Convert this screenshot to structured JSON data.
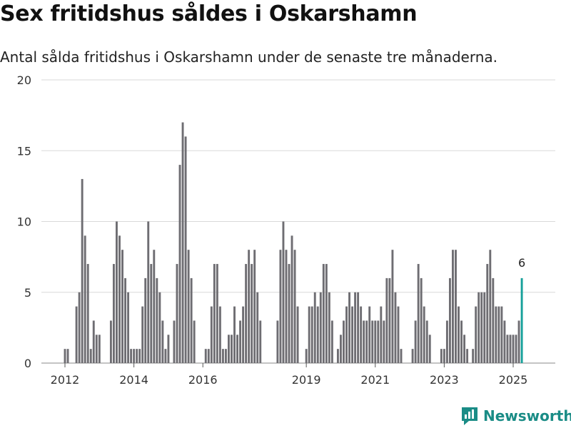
{
  "title": "Sex fritidshus såldes i Oskarshamn",
  "subtitle": "Antal sålda fritidshus i Oskarshamn under de senaste tre månaderna.",
  "brand": {
    "name": "Newsworthy",
    "icon": "newsworthy-logo-icon"
  },
  "colors": {
    "bar": "#6e6d72",
    "highlight": "#16a09a",
    "grid": "#d9d9d9",
    "brand": "#1a8c86"
  },
  "chart_data": {
    "type": "bar",
    "xlabel": "",
    "ylabel": "",
    "ylim": [
      0,
      20
    ],
    "yticks": [
      0,
      5,
      10,
      15,
      20
    ],
    "grid": true,
    "xticks": [
      {
        "label": "2012",
        "x": 2012.0
      },
      {
        "label": "2014",
        "x": 2014.0
      },
      {
        "label": "2016",
        "x": 2016.0
      },
      {
        "label": "2019",
        "x": 2019.0
      },
      {
        "label": "2021",
        "x": 2021.0
      },
      {
        "label": "2023",
        "x": 2023.0
      },
      {
        "label": "2025",
        "x": 2025.0
      }
    ],
    "x_start": 2012.0,
    "x_step_months": 1,
    "values": [
      1,
      1,
      0,
      0,
      4,
      5,
      13,
      9,
      7,
      1,
      3,
      2,
      2,
      0,
      0,
      0,
      3,
      7,
      10,
      9,
      8,
      6,
      5,
      1,
      1,
      1,
      1,
      4,
      6,
      10,
      7,
      8,
      6,
      5,
      3,
      1,
      2,
      0,
      3,
      7,
      14,
      17,
      16,
      8,
      6,
      3,
      0,
      0,
      0,
      1,
      1,
      4,
      7,
      7,
      4,
      1,
      1,
      2,
      2,
      4,
      2,
      3,
      4,
      7,
      8,
      7,
      8,
      5,
      3,
      0,
      0,
      0,
      0,
      0,
      3,
      8,
      10,
      8,
      7,
      9,
      8,
      4,
      0,
      0,
      1,
      4,
      4,
      5,
      4,
      5,
      7,
      7,
      5,
      3,
      0,
      1,
      2,
      3,
      4,
      5,
      4,
      5,
      5,
      4,
      3,
      3,
      4,
      3,
      3,
      3,
      4,
      3,
      6,
      6,
      8,
      5,
      4,
      1,
      0,
      0,
      0,
      1,
      3,
      7,
      6,
      4,
      3,
      2,
      0,
      0,
      0,
      1,
      1,
      3,
      6,
      8,
      8,
      4,
      3,
      2,
      1,
      0,
      1,
      4,
      5,
      5,
      5,
      7,
      8,
      6,
      4,
      4,
      4,
      3,
      2,
      2,
      2,
      2,
      3,
      6
    ],
    "highlight_last": true,
    "annotations": [
      {
        "label": "6",
        "target": "last"
      }
    ]
  }
}
